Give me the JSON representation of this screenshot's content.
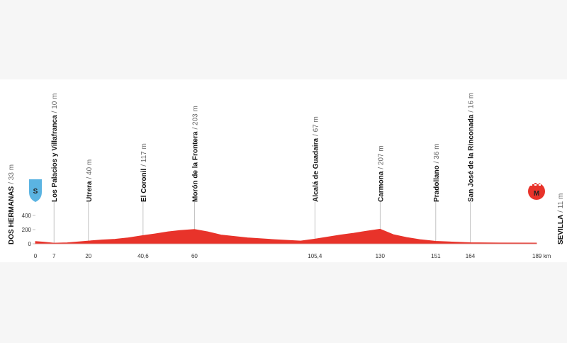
{
  "chart_data": {
    "type": "area",
    "color": "#e8332a",
    "x": [
      0,
      3,
      7,
      12,
      20,
      25,
      30,
      35,
      40.6,
      45,
      50,
      55,
      60,
      65,
      70,
      80,
      90,
      100,
      105.4,
      110,
      115,
      120,
      125,
      130,
      135,
      140,
      145,
      151,
      158,
      164,
      175,
      189
    ],
    "values": [
      33,
      25,
      10,
      15,
      40,
      55,
      65,
      85,
      117,
      140,
      170,
      190,
      203,
      170,
      125,
      85,
      60,
      40,
      67,
      95,
      125,
      150,
      180,
      207,
      130,
      90,
      60,
      36,
      25,
      16,
      12,
      11
    ],
    "xlim": [
      0,
      189
    ],
    "ylim": [
      0,
      400
    ],
    "yticks": [
      0,
      200,
      400
    ],
    "xticks": [
      0,
      7,
      20,
      {
        "value": 40.6,
        "label": "40,6"
      },
      60,
      {
        "value": 105.4,
        "label": "105,4"
      },
      130,
      151,
      164,
      {
        "value": 189,
        "label": "189 km"
      }
    ],
    "waypoints": [
      {
        "name": "DOS HERMANAS",
        "elevation_label": "/ 33 m",
        "icon": "S"
      },
      {
        "name": "Los Palacios y Villafranca",
        "elevation_label": "/ 10 m"
      },
      {
        "name": "Utrera",
        "elevation_label": "/ 40 m"
      },
      {
        "name": "El Coronil",
        "elevation_label": "/ 117 m"
      },
      {
        "name": "Morón de la Frontera",
        "elevation_label": "/ 203 m"
      },
      {
        "name": "Alcalá de Guadaira",
        "elevation_label": "/ 67 m"
      },
      {
        "name": "Carmona",
        "elevation_label": "/ 207 m"
      },
      {
        "name": "Pradollano",
        "elevation_label": "/ 36 m"
      },
      {
        "name": "San José de la Rinconada",
        "elevation_label": "/ 16 m"
      },
      {
        "name": "SEVILLA",
        "elevation_label": "/ 11 m",
        "icon": "M"
      }
    ]
  }
}
